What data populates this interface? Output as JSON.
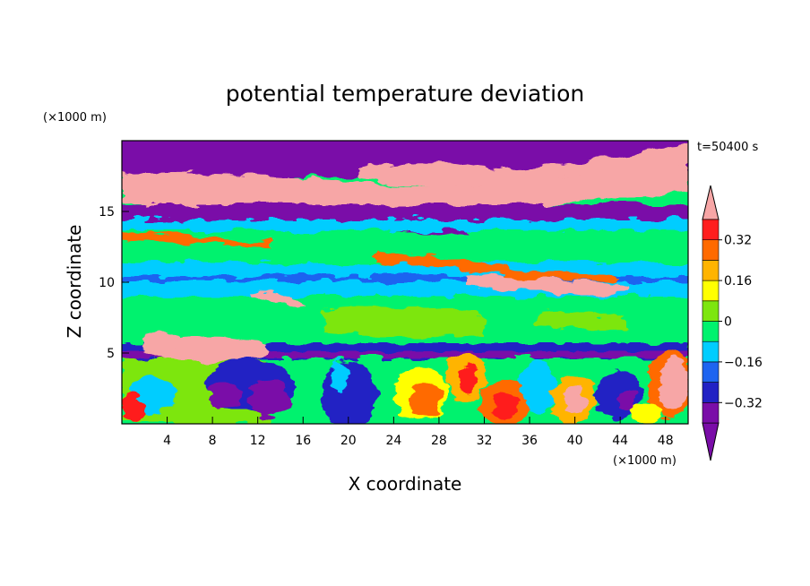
{
  "chart_data": {
    "type": "heatmap",
    "title": "potential temperature deviation",
    "time_label": "t=50400 s",
    "xlabel": "X coordinate",
    "ylabel": "Z coordinate",
    "x_unit": "(×1000 m)",
    "y_unit": "(×1000 m)",
    "xlim": [
      0,
      50
    ],
    "ylim": [
      0,
      20
    ],
    "x_ticks": [
      4,
      8,
      12,
      16,
      20,
      24,
      28,
      32,
      36,
      40,
      44,
      48
    ],
    "y_ticks": [
      5,
      10,
      15
    ],
    "colorbar": {
      "levels": [
        -0.4,
        -0.32,
        -0.24,
        -0.16,
        -0.08,
        0,
        0.08,
        0.16,
        0.24,
        0.32,
        0.4
      ],
      "labels": [
        "0.32",
        "0.16",
        "0",
        "−0.16",
        "−0.32"
      ],
      "label_values": [
        0.32,
        0.16,
        0,
        -0.16,
        -0.32
      ],
      "colors": [
        "#7a0da8",
        "#2222c4",
        "#1e64f0",
        "#00cdff",
        "#00f26e",
        "#7de60f",
        "#ffff00",
        "#ffb400",
        "#ff6a00",
        "#ff1e1e"
      ],
      "under_color": "#7a0da8",
      "over_color": "#f7a6a6"
    },
    "layers": [
      {
        "z": [
          18.5,
          20
        ],
        "value": "below -0.4"
      },
      {
        "z": [
          15.8,
          18.5
        ],
        "value": "above 0.4"
      },
      {
        "z": [
          14.4,
          15.8
        ],
        "value": "below -0.4"
      },
      {
        "z": [
          13.8,
          14.4
        ],
        "value": "-0.16 to -0.08"
      },
      {
        "z": [
          11.5,
          13.8
        ],
        "value": "-0.08 to 0"
      },
      {
        "z": [
          9.0,
          11.5
        ],
        "value": "-0.16 to -0.08"
      },
      {
        "z": [
          5.8,
          9.0
        ],
        "value": "-0.08 to 0"
      },
      {
        "z": [
          5.0,
          5.8
        ],
        "value": "-0.32 to -0.24"
      },
      {
        "z": [
          0,
          5.0
        ],
        "value": "mixed -0.4 to above 0.4"
      }
    ]
  }
}
